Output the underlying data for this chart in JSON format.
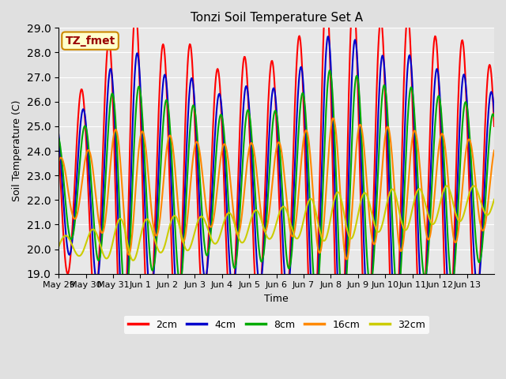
{
  "title": "Tonzi Soil Temperature Set A",
  "xlabel": "Time",
  "ylabel": "Soil Temperature (C)",
  "annotation": "TZ_fmet",
  "ylim": [
    19.0,
    29.0
  ],
  "yticks": [
    19.0,
    20.0,
    21.0,
    22.0,
    23.0,
    24.0,
    25.0,
    26.0,
    27.0,
    28.0,
    29.0
  ],
  "xtick_labels": [
    "May 29",
    "May 30",
    "May 31",
    "Jun 1",
    "Jun 2",
    "Jun 3",
    "Jun 4",
    "Jun 5",
    "Jun 6",
    "Jun 7",
    "Jun 8",
    "Jun 9",
    "Jun 10",
    "Jun 11",
    "Jun 12",
    "Jun 13"
  ],
  "line_colors": [
    "#ff0000",
    "#0000cc",
    "#00aa00",
    "#ff8800",
    "#cccc00"
  ],
  "line_labels": [
    "2cm",
    "4cm",
    "8cm",
    "16cm",
    "32cm"
  ],
  "background_color": "#e0e0e0",
  "plot_bg_color": "#e8e8e8",
  "annotation_bg": "#ffffcc",
  "annotation_border": "#cc8800",
  "annotation_text_color": "#990000",
  "title_fontsize": 11,
  "axis_fontsize": 9,
  "tick_fontsize": 8,
  "legend_fontsize": 9,
  "linewidth": 1.5
}
